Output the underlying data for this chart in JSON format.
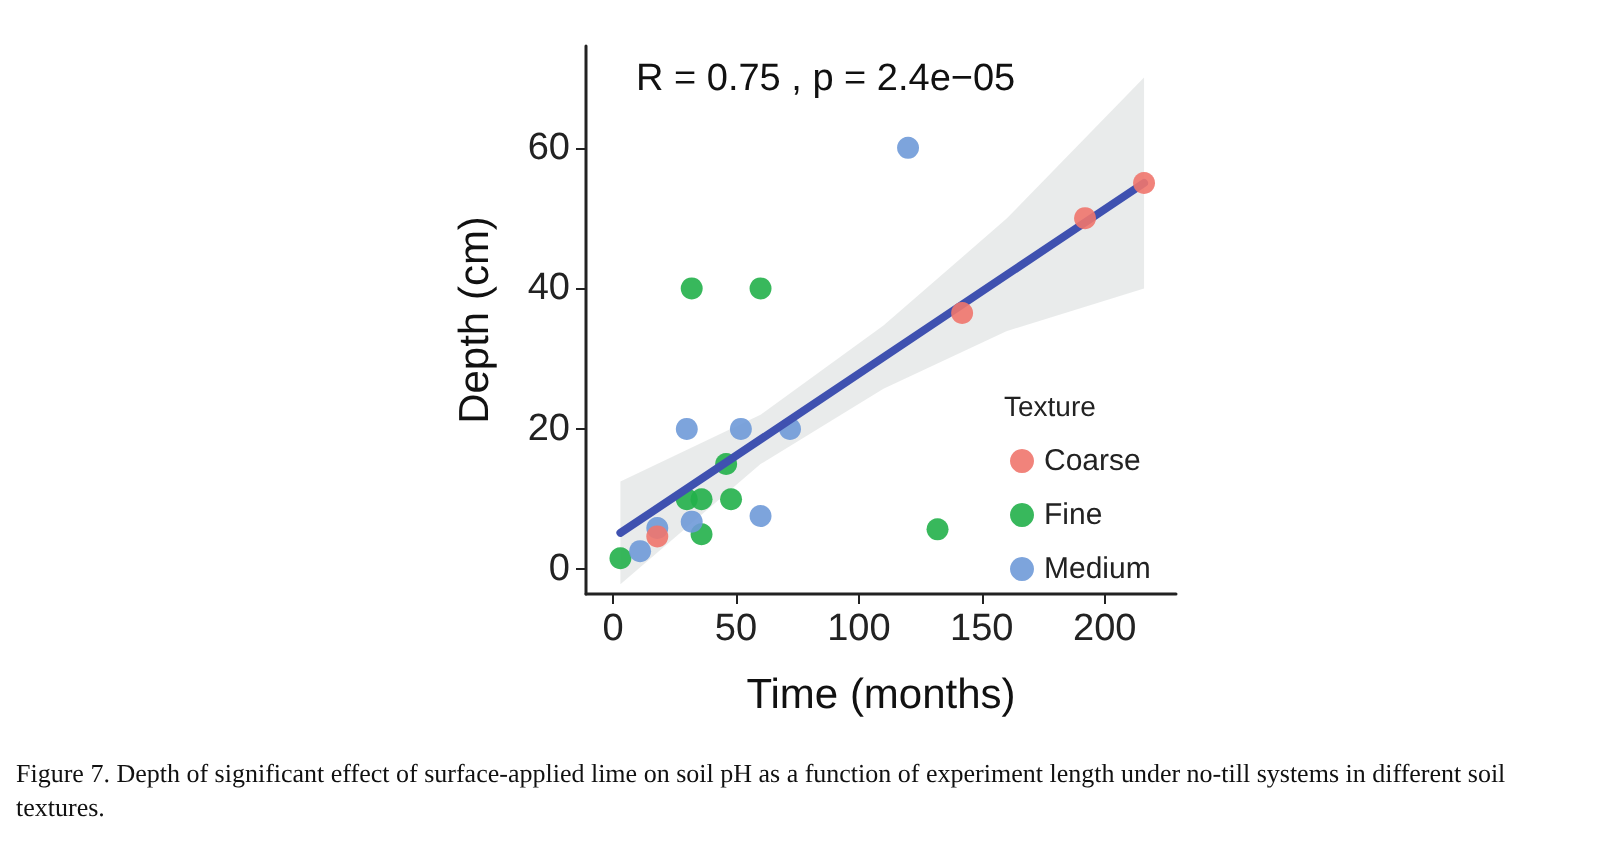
{
  "chart_data": {
    "type": "scatter",
    "xlabel": "Time (months)",
    "ylabel": "Depth (cm)",
    "legend_title": "Texture",
    "xlim": [
      -11,
      229
    ],
    "ylim": [
      -3.5,
      74.5
    ],
    "xticks": [
      0,
      50,
      100,
      150,
      200
    ],
    "yticks": [
      0,
      20,
      40,
      60
    ],
    "grid": false,
    "legend": "bottom right",
    "marker": "circle",
    "annotations": [
      "R = 0.75 , p = 2.4e−05",
      "Figure 7. Depth of significant effect of surface-applied lime on soil pH as a function of experiment length under no-till systems in different soil textures."
    ],
    "series": [
      {
        "name": "Coarse",
        "color": "#f0756d",
        "x": [
          216,
          192,
          142,
          18
        ],
        "values": [
          55,
          50,
          36.5,
          4.7
        ]
      },
      {
        "name": "Fine",
        "color": "#22b04a",
        "x": [
          3,
          32,
          60,
          46,
          30,
          36,
          48,
          36,
          132
        ],
        "values": [
          1.6,
          40,
          40,
          15,
          10,
          10,
          10,
          5,
          5.7
        ]
      },
      {
        "name": "Medium",
        "color": "#6f9ad8",
        "x": [
          120,
          30,
          52,
          72,
          60,
          32,
          18,
          11
        ],
        "values": [
          60,
          20,
          20,
          20,
          7.6,
          6.8,
          5.9,
          2.6
        ]
      },
      {
        "type": "line",
        "color": "#3f51b0",
        "marker": "none",
        "x": [
          3,
          60,
          110,
          160,
          216
        ],
        "values": [
          5.2,
          18.5,
          30.2,
          41.9,
          55
        ],
        "lower": [
          -2.1,
          15,
          25.7,
          33.9,
          40
        ],
        "upper": [
          12.5,
          22,
          34.7,
          49.9,
          70
        ]
      }
    ]
  }
}
